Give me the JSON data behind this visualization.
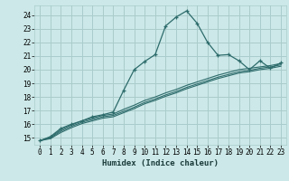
{
  "xlabel": "Humidex (Indice chaleur)",
  "bg_color": "#cce8e8",
  "grid_color": "#aacccc",
  "line_color": "#2d6b6b",
  "xlim": [
    -0.5,
    23.5
  ],
  "ylim": [
    14.5,
    24.7
  ],
  "xticks": [
    0,
    1,
    2,
    3,
    4,
    5,
    6,
    7,
    8,
    9,
    10,
    11,
    12,
    13,
    14,
    15,
    16,
    17,
    18,
    19,
    20,
    21,
    22,
    23
  ],
  "yticks": [
    15,
    16,
    17,
    18,
    19,
    20,
    21,
    22,
    23,
    24
  ],
  "curve1_x": [
    0,
    1,
    2,
    3,
    4,
    5,
    6,
    7,
    8,
    9,
    10,
    11,
    12,
    13,
    14,
    15,
    16,
    17,
    18,
    19,
    20,
    21,
    22,
    23
  ],
  "curve1_y": [
    14.8,
    15.1,
    15.7,
    16.0,
    16.25,
    16.55,
    16.7,
    16.9,
    18.5,
    20.0,
    20.6,
    21.1,
    23.2,
    23.85,
    24.3,
    23.4,
    22.0,
    21.05,
    21.1,
    20.65,
    20.0,
    20.65,
    20.1,
    20.5
  ],
  "curve2_x": [
    0,
    1,
    2,
    3,
    4,
    5,
    6,
    7,
    8,
    9,
    10,
    11,
    12,
    13,
    14,
    15,
    16,
    17,
    18,
    19,
    20,
    21,
    22,
    23
  ],
  "curve2_y": [
    14.8,
    15.05,
    15.6,
    15.95,
    16.25,
    16.45,
    16.65,
    16.75,
    17.1,
    17.4,
    17.75,
    18.0,
    18.3,
    18.55,
    18.85,
    19.1,
    19.35,
    19.6,
    19.8,
    20.0,
    20.1,
    20.2,
    20.3,
    20.45
  ],
  "curve3_x": [
    0,
    1,
    2,
    3,
    4,
    5,
    6,
    7,
    8,
    9,
    10,
    11,
    12,
    13,
    14,
    15,
    16,
    17,
    18,
    19,
    20,
    21,
    22,
    23
  ],
  "curve3_y": [
    14.8,
    15.0,
    15.5,
    15.85,
    16.15,
    16.35,
    16.55,
    16.65,
    16.95,
    17.25,
    17.6,
    17.85,
    18.15,
    18.4,
    18.7,
    18.95,
    19.2,
    19.45,
    19.65,
    19.85,
    19.95,
    20.1,
    20.2,
    20.35
  ],
  "curve4_x": [
    0,
    1,
    2,
    3,
    4,
    5,
    6,
    7,
    8,
    9,
    10,
    11,
    12,
    13,
    14,
    15,
    16,
    17,
    18,
    19,
    20,
    21,
    22,
    23
  ],
  "curve4_y": [
    14.8,
    14.95,
    15.4,
    15.75,
    16.05,
    16.25,
    16.45,
    16.55,
    16.85,
    17.15,
    17.5,
    17.75,
    18.05,
    18.3,
    18.6,
    18.85,
    19.1,
    19.35,
    19.55,
    19.75,
    19.85,
    20.0,
    20.1,
    20.25
  ]
}
